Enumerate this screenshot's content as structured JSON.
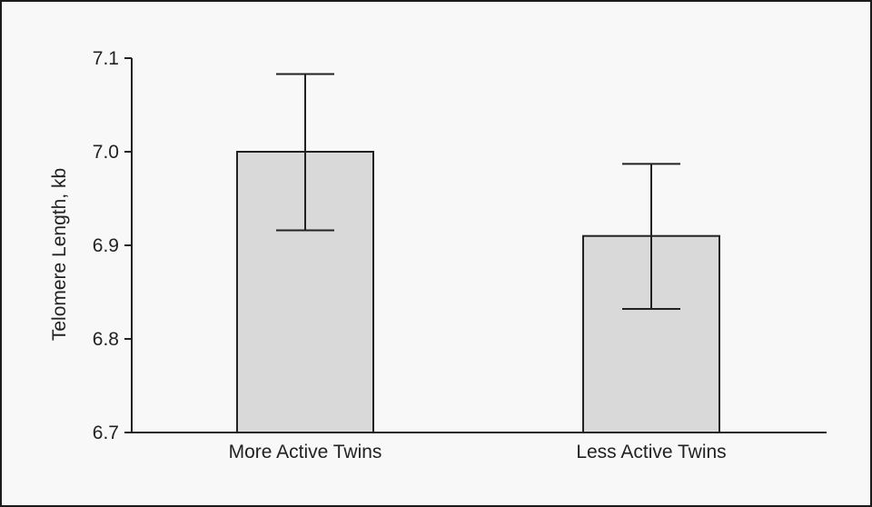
{
  "chart_data": {
    "type": "bar",
    "categories": [
      "More Active Twins",
      "Less Active Twins"
    ],
    "values": [
      7.0,
      6.91
    ],
    "error_upper": [
      7.083,
      6.987
    ],
    "error_lower": [
      6.916,
      6.832
    ],
    "ylabel": "Telomere Length, kb",
    "xlabel": "",
    "ylim": [
      6.7,
      7.1
    ],
    "yticks": [
      6.7,
      6.8,
      6.9,
      7.0,
      7.1
    ],
    "ytick_labels": [
      "6.7",
      "6.8",
      "6.9",
      "7.0",
      "7.1"
    ],
    "grid": false,
    "bar_color": "#d9d9d9",
    "edge_color": "#222222",
    "background": "#f8f8f8"
  }
}
